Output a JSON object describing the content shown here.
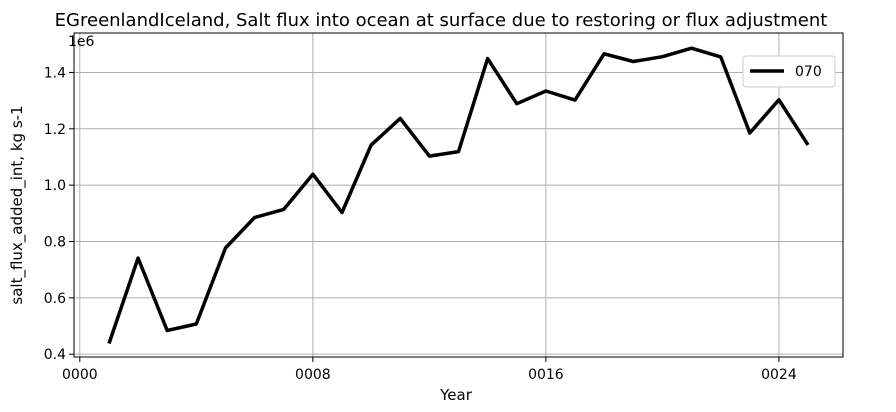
{
  "chart_data": {
    "type": "line",
    "title": "EGreenlandIceland, Salt flux into ocean at surface due to restoring or flux adjustment",
    "xlabel": "Year",
    "ylabel": "salt_flux_added_int, kg s-1",
    "y_offset_text": "1e6",
    "y_scale": 1000000,
    "xlim": [
      -0.2,
      26.2
    ],
    "ylim": [
      0.39,
      1.54
    ],
    "x_ticks": [
      0,
      8,
      16,
      24
    ],
    "x_tick_labels": [
      "0000",
      "0008",
      "0016",
      "0024"
    ],
    "y_ticks": [
      0.4,
      0.6,
      0.8,
      1.0,
      1.2,
      1.4
    ],
    "y_tick_labels": [
      "0.4",
      "0.6",
      "0.8",
      "1.0",
      "1.2",
      "1.4"
    ],
    "grid": true,
    "legend_position": "top-right",
    "series": [
      {
        "name": "070",
        "color": "#000000",
        "x": [
          1,
          2,
          3,
          4,
          5,
          6,
          7,
          8,
          9,
          10,
          11,
          12,
          13,
          14,
          15,
          16,
          17,
          18,
          19,
          20,
          21,
          22,
          23,
          24,
          25
        ],
        "y": [
          0.438,
          0.741,
          0.484,
          0.507,
          0.777,
          0.885,
          0.914,
          1.039,
          0.903,
          1.142,
          1.237,
          1.103,
          1.119,
          1.449,
          1.289,
          1.334,
          1.302,
          1.466,
          1.439,
          1.456,
          1.486,
          1.455,
          1.185,
          1.303,
          1.143
        ]
      }
    ]
  }
}
